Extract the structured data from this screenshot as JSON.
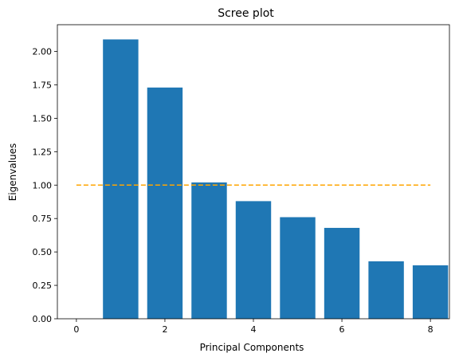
{
  "chart_data": {
    "type": "bar",
    "title": "Scree plot",
    "xlabel": "Principal Components",
    "ylabel": "Eigenvalues",
    "x": [
      1,
      2,
      3,
      4,
      5,
      6,
      7,
      8
    ],
    "values": [
      2.09,
      1.73,
      1.02,
      0.88,
      0.76,
      0.68,
      0.43,
      0.4
    ],
    "bar_color": "#1f77b4",
    "reference_line": {
      "y": 1.0,
      "x_range": [
        0,
        8
      ],
      "style": "dashed",
      "color": "#ffa500"
    },
    "xlim": [
      -0.43,
      8.43
    ],
    "ylim": [
      0,
      2.2
    ],
    "xticks": [
      0,
      2,
      4,
      6,
      8
    ],
    "xtick_labels": [
      "0",
      "2",
      "4",
      "6",
      "8"
    ],
    "yticks": [
      0,
      0.25,
      0.5,
      0.75,
      1.0,
      1.25,
      1.5,
      1.75,
      2.0
    ],
    "ytick_labels": [
      "0.00",
      "0.25",
      "0.50",
      "0.75",
      "1.00",
      "1.25",
      "1.50",
      "1.75",
      "2.00"
    ],
    "grid": false,
    "legend": false
  }
}
